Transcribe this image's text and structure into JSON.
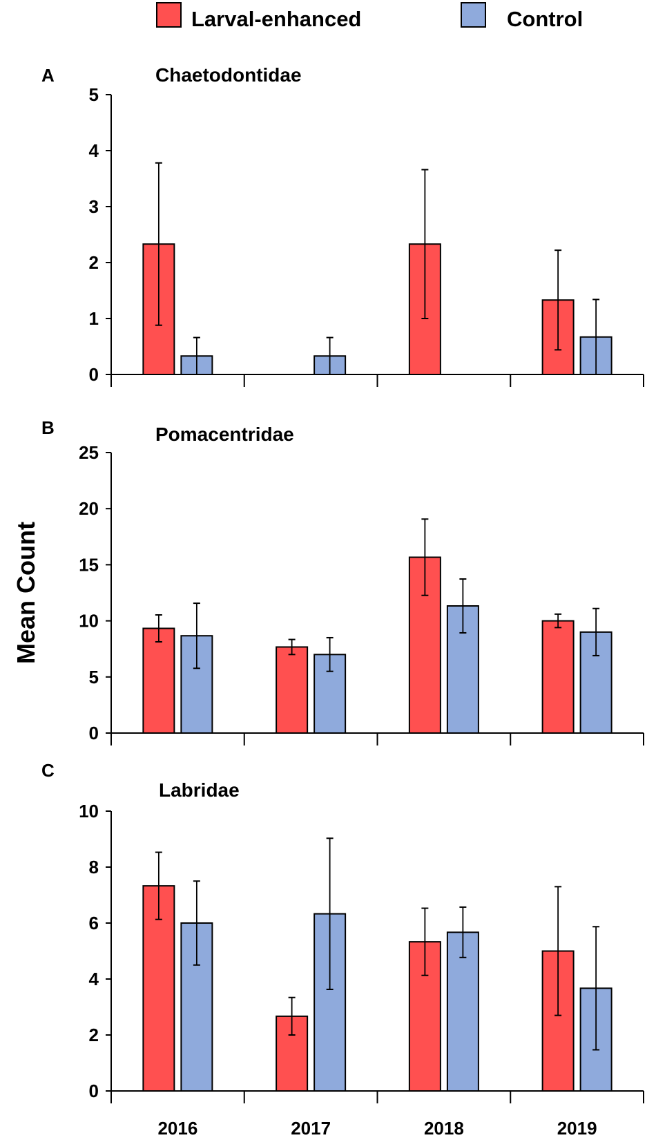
{
  "chart_data": {
    "type": "bar",
    "legend": {
      "position": "top-center",
      "items": [
        "Larval-enhanced",
        "Control"
      ]
    },
    "colors": {
      "Larval-enhanced": "#ff5050",
      "Control": "#8faadc"
    },
    "ylabel": "Mean Count",
    "categories": [
      "2016",
      "2017",
      "2018",
      "2019"
    ],
    "panels": [
      {
        "label": "A",
        "title": "Chaetodontidae",
        "ylim": [
          0,
          5
        ],
        "yticks": [
          0,
          1,
          2,
          3,
          4,
          5
        ],
        "series": [
          {
            "name": "Larval-enhanced",
            "values": [
              2.33,
              0,
              2.33,
              1.33
            ],
            "errors": [
              1.45,
              0,
              1.33,
              0.89
            ]
          },
          {
            "name": "Control",
            "values": [
              0.33,
              0.33,
              0,
              0.67
            ],
            "errors": [
              0.33,
              0.33,
              0,
              0.67
            ]
          }
        ]
      },
      {
        "label": "B",
        "title": "Pomacentridae",
        "ylim": [
          0,
          25
        ],
        "yticks": [
          0,
          5,
          10,
          15,
          20,
          25
        ],
        "series": [
          {
            "name": "Larval-enhanced",
            "values": [
              9.33,
              7.67,
              15.67,
              10
            ],
            "errors": [
              1.2,
              0.67,
              3.4,
              0.6
            ]
          },
          {
            "name": "Control",
            "values": [
              8.67,
              7,
              11.33,
              9
            ],
            "errors": [
              2.9,
              1.5,
              2.4,
              2.1
            ]
          }
        ]
      },
      {
        "label": "C",
        "title": "Labridae",
        "ylim": [
          0,
          10
        ],
        "yticks": [
          0,
          2,
          4,
          6,
          8,
          10
        ],
        "series": [
          {
            "name": "Larval-enhanced",
            "values": [
              7.33,
              2.67,
              5.33,
              5
            ],
            "errors": [
              1.2,
              0.67,
              1.2,
              2.3
            ]
          },
          {
            "name": "Control",
            "values": [
              6,
              6.33,
              5.67,
              3.67
            ],
            "errors": [
              1.5,
              2.7,
              0.9,
              2.2
            ]
          }
        ]
      }
    ]
  }
}
